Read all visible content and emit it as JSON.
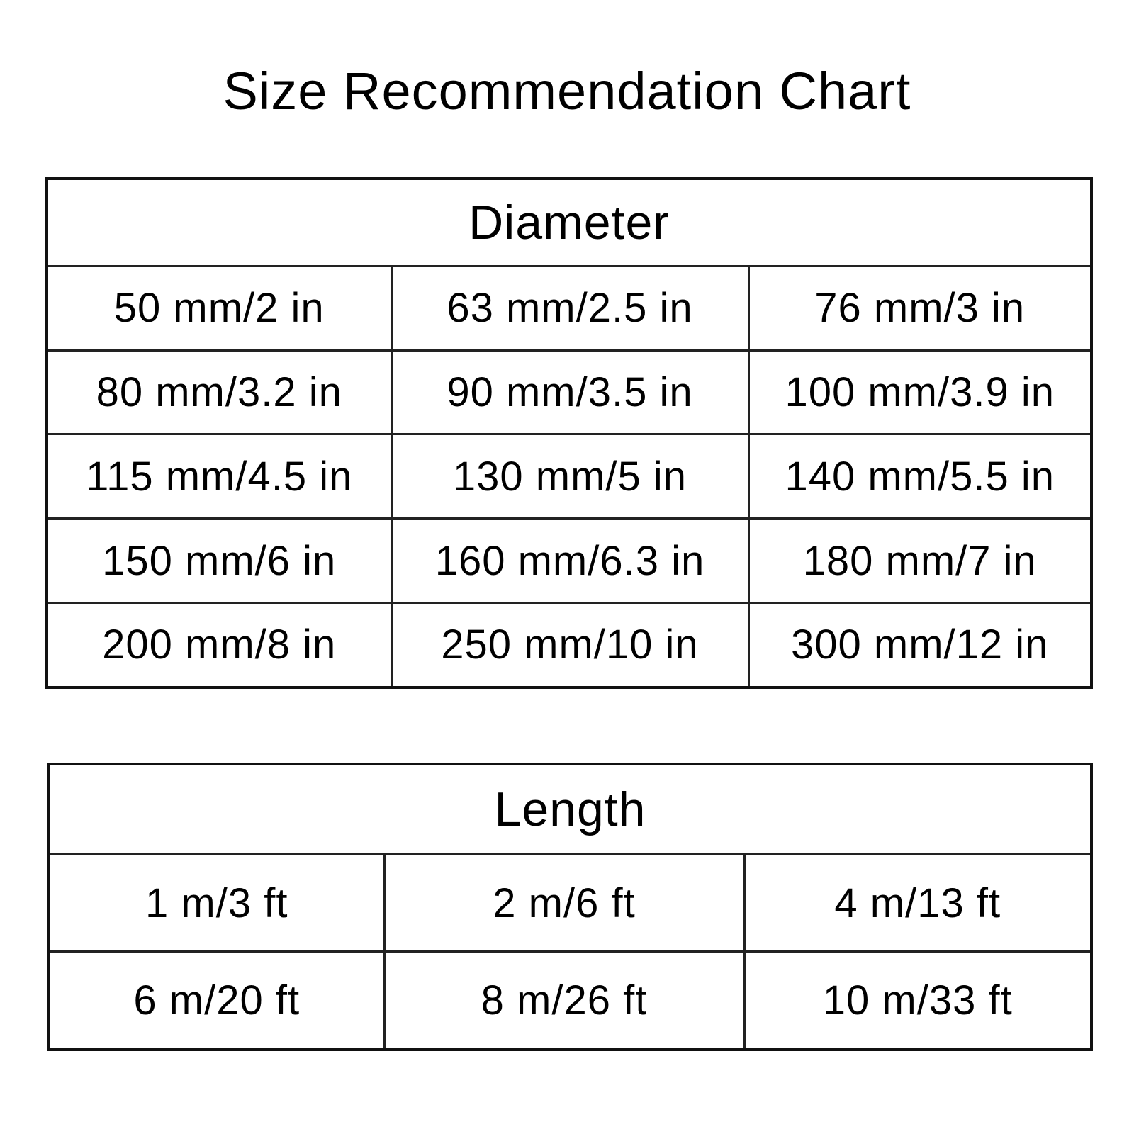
{
  "title": "Size Recommendation Chart",
  "diameter": {
    "header": "Diameter",
    "rows": [
      [
        "50 mm/2 in",
        "63 mm/2.5 in",
        "76 mm/3 in"
      ],
      [
        "80 mm/3.2 in",
        "90 mm/3.5 in",
        "100 mm/3.9 in"
      ],
      [
        "115 mm/4.5 in",
        "130 mm/5 in",
        "140 mm/5.5 in"
      ],
      [
        "150 mm/6 in",
        "160 mm/6.3 in",
        "180 mm/7 in"
      ],
      [
        "200 mm/8 in",
        "250 mm/10 in",
        "300 mm/12 in"
      ]
    ]
  },
  "length": {
    "header": "Length",
    "rows": [
      [
        "1 m/3 ft",
        "2 m/6 ft",
        "4 m/13 ft"
      ],
      [
        "6 m/20 ft",
        "8 m/26 ft",
        "10 m/33 ft"
      ]
    ]
  }
}
